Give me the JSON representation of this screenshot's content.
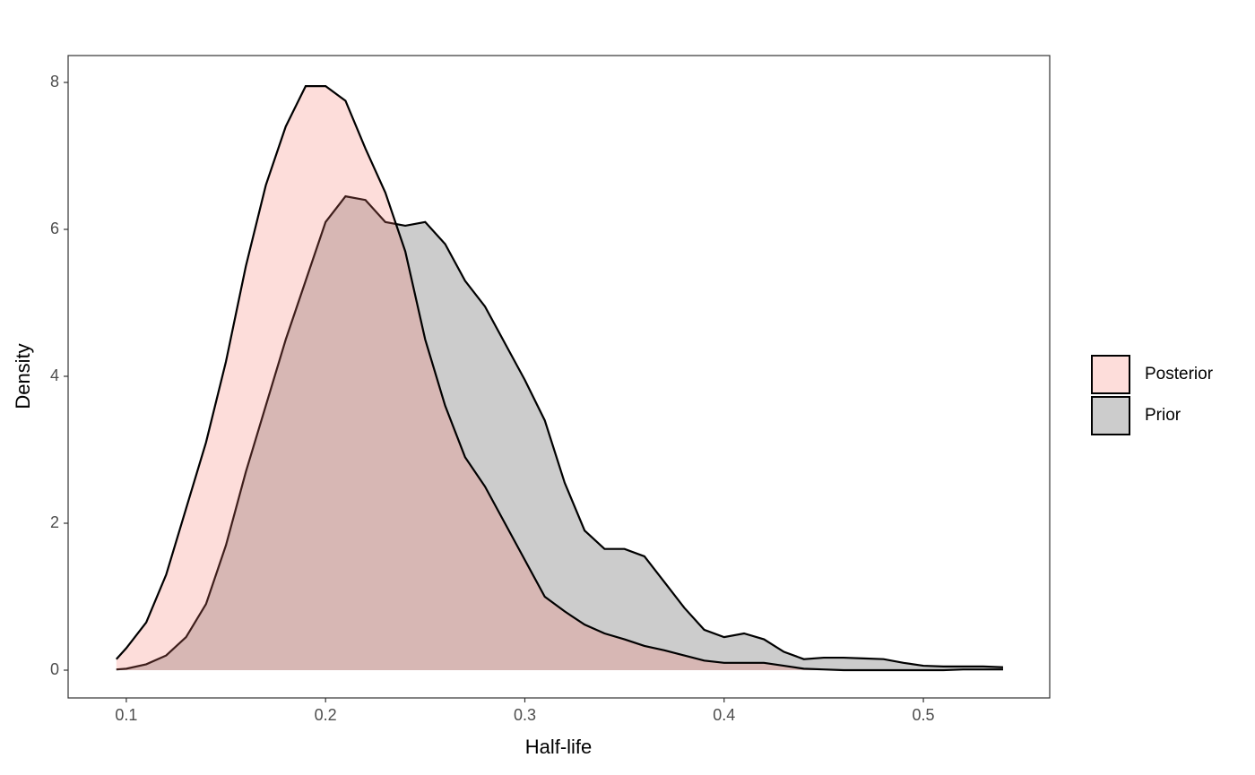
{
  "chart_data": {
    "type": "density",
    "x_label": "Half-life",
    "y_label": "Density",
    "x": [
      0.095,
      0.1,
      0.11,
      0.12,
      0.13,
      0.14,
      0.15,
      0.16,
      0.17,
      0.18,
      0.19,
      0.2,
      0.21,
      0.22,
      0.23,
      0.24,
      0.25,
      0.26,
      0.27,
      0.28,
      0.29,
      0.3,
      0.31,
      0.32,
      0.33,
      0.34,
      0.35,
      0.36,
      0.37,
      0.38,
      0.39,
      0.4,
      0.41,
      0.42,
      0.43,
      0.44,
      0.45,
      0.46,
      0.47,
      0.48,
      0.49,
      0.5,
      0.51,
      0.52,
      0.53,
      0.54
    ],
    "series": [
      {
        "name": "Posterior",
        "color": "#f8766d",
        "values": [
          0.15,
          0.3,
          0.65,
          1.3,
          2.2,
          3.1,
          4.2,
          5.5,
          6.6,
          7.4,
          7.95,
          7.95,
          7.75,
          7.1,
          6.5,
          5.7,
          4.5,
          3.6,
          2.9,
          2.5,
          2.0,
          1.5,
          1.0,
          0.8,
          0.62,
          0.5,
          0.42,
          0.33,
          0.27,
          0.2,
          0.13,
          0.1,
          0.1,
          0.1,
          0.06,
          0.02,
          0.01,
          0.0,
          0.0,
          0.0,
          0.0,
          0.0,
          0.0,
          0.01,
          0.01,
          0.01
        ]
      },
      {
        "name": "Prior",
        "color": "#cccccc",
        "values": [
          0.01,
          0.02,
          0.08,
          0.2,
          0.45,
          0.9,
          1.7,
          2.7,
          3.6,
          4.5,
          5.3,
          6.1,
          6.45,
          6.4,
          6.1,
          6.05,
          6.1,
          5.8,
          5.3,
          4.95,
          4.45,
          3.95,
          3.4,
          2.55,
          1.9,
          1.65,
          1.65,
          1.55,
          1.2,
          0.85,
          0.55,
          0.45,
          0.5,
          0.42,
          0.25,
          0.15,
          0.17,
          0.17,
          0.16,
          0.15,
          0.1,
          0.06,
          0.05,
          0.05,
          0.05,
          0.04
        ]
      }
    ],
    "xlim": [
      0.0708,
      0.5634
    ],
    "ylim": [
      -0.378,
      8.366
    ],
    "xticks": [
      0.1,
      0.2,
      0.3,
      0.4,
      0.5
    ],
    "yticks": [
      0,
      2,
      4,
      6,
      8
    ],
    "legend": "right"
  }
}
